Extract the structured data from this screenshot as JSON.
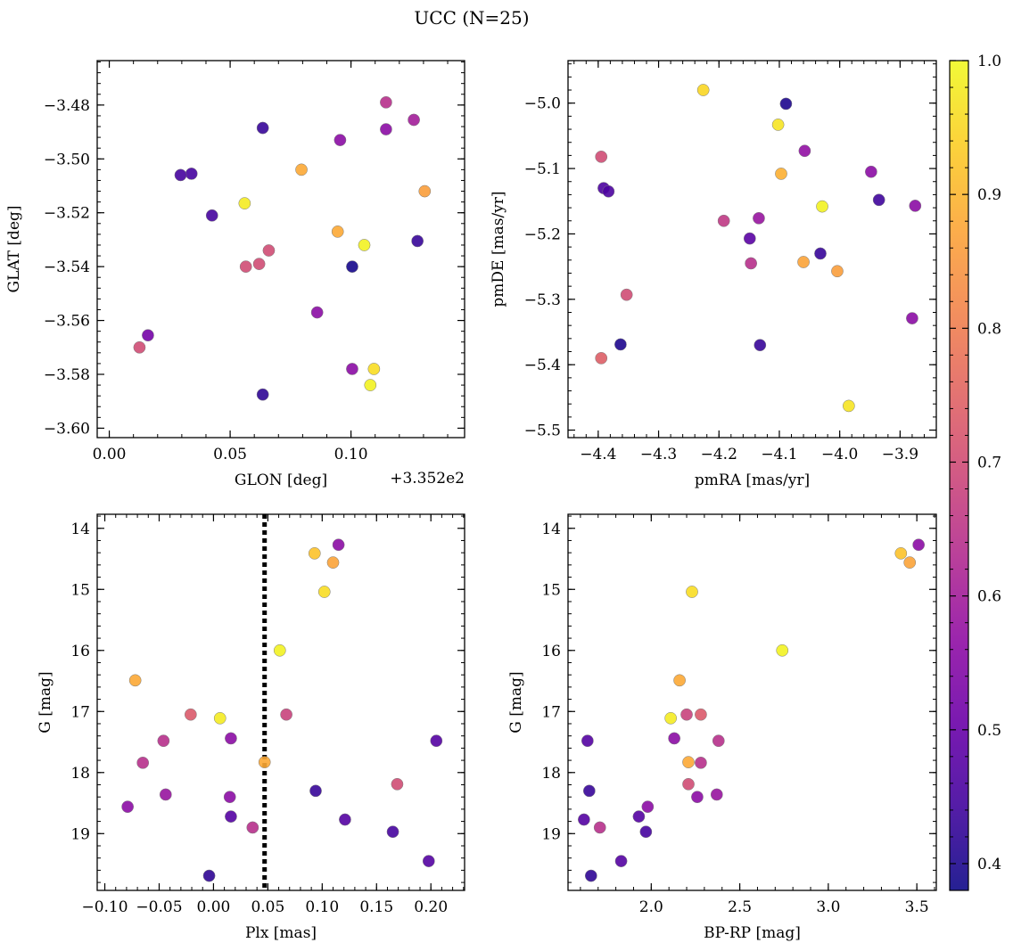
{
  "figure": {
    "title": "UCC (N=25)",
    "colorbar": {
      "colormap": "plasma",
      "vmin": 0.38,
      "vmax": 1.0,
      "ticks": [
        "0.4",
        "0.5",
        "0.6",
        "0.7",
        "0.8",
        "0.9",
        "1.0"
      ],
      "tick_values": [
        0.4,
        0.5,
        0.6,
        0.7,
        0.8,
        0.9,
        1.0
      ]
    }
  },
  "chart_data": [
    {
      "type": "scatter",
      "panel": "top-left",
      "xlabel": "GLON [deg]",
      "ylabel": "GLAT [deg]",
      "offset_text": "+3.352e2",
      "xlim": [
        -0.005,
        0.147
      ],
      "ylim": [
        -3.6035,
        -3.4635
      ],
      "y_inverted": false,
      "xticks": [
        0.0,
        0.05,
        0.1
      ],
      "xtick_labels": [
        "0.00",
        "0.05",
        "0.10"
      ],
      "yticks": [
        -3.6,
        -3.58,
        -3.56,
        -3.54,
        -3.52,
        -3.5,
        -3.48
      ],
      "ytick_labels": [
        "−3.60",
        "−3.58",
        "−3.56",
        "−3.54",
        "−3.52",
        "−3.50",
        "−3.48"
      ],
      "points": [
        {
          "x": 0.034,
          "y": -3.5055,
          "c": 0.45
        },
        {
          "x": 0.0295,
          "y": -3.506,
          "c": 0.45
        },
        {
          "x": 0.0425,
          "y": -3.521,
          "c": 0.45
        },
        {
          "x": 0.0635,
          "y": -3.4885,
          "c": 0.43
        },
        {
          "x": 0.056,
          "y": -3.5165,
          "c": 0.98
        },
        {
          "x": 0.0795,
          "y": -3.504,
          "c": 0.88
        },
        {
          "x": 0.0955,
          "y": -3.493,
          "c": 0.56
        },
        {
          "x": 0.1145,
          "y": -3.479,
          "c": 0.64
        },
        {
          "x": 0.1145,
          "y": -3.489,
          "c": 0.56
        },
        {
          "x": 0.126,
          "y": -3.4855,
          "c": 0.6
        },
        {
          "x": 0.1305,
          "y": -3.512,
          "c": 0.86
        },
        {
          "x": 0.0945,
          "y": -3.527,
          "c": 0.88
        },
        {
          "x": 0.1055,
          "y": -3.532,
          "c": 0.99
        },
        {
          "x": 0.1275,
          "y": -3.5305,
          "c": 0.43
        },
        {
          "x": 0.1005,
          "y": -3.54,
          "c": 0.39
        },
        {
          "x": 0.066,
          "y": -3.534,
          "c": 0.7
        },
        {
          "x": 0.062,
          "y": -3.539,
          "c": 0.7
        },
        {
          "x": 0.0565,
          "y": -3.54,
          "c": 0.7
        },
        {
          "x": 0.086,
          "y": -3.557,
          "c": 0.56
        },
        {
          "x": 0.016,
          "y": -3.5655,
          "c": 0.52
        },
        {
          "x": 0.0125,
          "y": -3.57,
          "c": 0.7
        },
        {
          "x": 0.1005,
          "y": -3.578,
          "c": 0.56
        },
        {
          "x": 0.1095,
          "y": -3.578,
          "c": 0.96
        },
        {
          "x": 0.108,
          "y": -3.584,
          "c": 0.99
        },
        {
          "x": 0.0635,
          "y": -3.5875,
          "c": 0.42
        }
      ]
    },
    {
      "type": "scatter",
      "panel": "top-right",
      "xlabel": "pmRA [mas/yr]",
      "ylabel": "pmDE [mas/yr]",
      "xlim": [
        -4.45,
        -3.84
      ],
      "ylim": [
        -5.5115,
        -4.935
      ],
      "y_inverted": false,
      "xticks": [
        -4.4,
        -4.3,
        -4.2,
        -4.1,
        -4.0,
        -3.9
      ],
      "xtick_labels": [
        "−4.4",
        "−4.3",
        "−4.2",
        "−4.1",
        "−4.0",
        "−3.9"
      ],
      "yticks": [
        -5.5,
        -5.4,
        -5.3,
        -5.2,
        -5.1,
        -5.0
      ],
      "ytick_labels": [
        "−5.5",
        "−5.4",
        "−5.3",
        "−5.2",
        "−5.1",
        "−5.0"
      ],
      "points": [
        {
          "x": -4.226,
          "y": -4.98,
          "c": 0.95
        },
        {
          "x": -4.089,
          "y": -5.001,
          "c": 0.4
        },
        {
          "x": -4.102,
          "y": -5.033,
          "c": 0.97
        },
        {
          "x": -4.395,
          "y": -5.082,
          "c": 0.7
        },
        {
          "x": -4.058,
          "y": -5.073,
          "c": 0.57
        },
        {
          "x": -4.097,
          "y": -5.108,
          "c": 0.89
        },
        {
          "x": -3.948,
          "y": -5.105,
          "c": 0.56
        },
        {
          "x": -4.391,
          "y": -5.13,
          "c": 0.46
        },
        {
          "x": -4.383,
          "y": -5.135,
          "c": 0.46
        },
        {
          "x": -3.935,
          "y": -5.148,
          "c": 0.44
        },
        {
          "x": -4.029,
          "y": -5.158,
          "c": 0.99
        },
        {
          "x": -3.875,
          "y": -5.157,
          "c": 0.56
        },
        {
          "x": -4.192,
          "y": -5.18,
          "c": 0.66
        },
        {
          "x": -4.134,
          "y": -5.176,
          "c": 0.58
        },
        {
          "x": -4.149,
          "y": -5.207,
          "c": 0.48
        },
        {
          "x": -4.032,
          "y": -5.23,
          "c": 0.43
        },
        {
          "x": -4.147,
          "y": -5.245,
          "c": 0.64
        },
        {
          "x": -4.06,
          "y": -5.243,
          "c": 0.87
        },
        {
          "x": -4.004,
          "y": -5.257,
          "c": 0.86
        },
        {
          "x": -4.353,
          "y": -5.293,
          "c": 0.7
        },
        {
          "x": -3.88,
          "y": -5.329,
          "c": 0.56
        },
        {
          "x": -4.363,
          "y": -5.369,
          "c": 0.4
        },
        {
          "x": -4.132,
          "y": -5.37,
          "c": 0.43
        },
        {
          "x": -4.395,
          "y": -5.39,
          "c": 0.74
        },
        {
          "x": -3.985,
          "y": -5.463,
          "c": 0.97
        }
      ]
    },
    {
      "type": "scatter",
      "panel": "bottom-left",
      "xlabel": "Plx [mas]",
      "ylabel": "G [mag]",
      "xlim": [
        -0.107,
        0.231
      ],
      "ylim": [
        19.93,
        13.77
      ],
      "y_inverted": true,
      "xticks": [
        -0.1,
        -0.05,
        0.0,
        0.05,
        0.1,
        0.15,
        0.2
      ],
      "xtick_labels": [
        "−0.10",
        "−0.05",
        "0.00",
        "0.05",
        "0.10",
        "0.15",
        "0.20"
      ],
      "yticks": [
        14,
        15,
        16,
        17,
        18,
        19
      ],
      "ytick_labels": [
        "14",
        "15",
        "16",
        "17",
        "18",
        "19"
      ],
      "vline": {
        "x": 0.047,
        "style": "dotted",
        "color": "#000000"
      },
      "points": [
        {
          "x": 0.093,
          "y": 14.41,
          "c": 0.92
        },
        {
          "x": 0.115,
          "y": 14.27,
          "c": 0.56
        },
        {
          "x": 0.11,
          "y": 14.56,
          "c": 0.87
        },
        {
          "x": 0.102,
          "y": 15.04,
          "c": 0.96
        },
        {
          "x": 0.061,
          "y": 16.0,
          "c": 0.99
        },
        {
          "x": -0.072,
          "y": 16.49,
          "c": 0.88
        },
        {
          "x": -0.021,
          "y": 17.05,
          "c": 0.73
        },
        {
          "x": 0.006,
          "y": 17.11,
          "c": 0.98
        },
        {
          "x": 0.067,
          "y": 17.05,
          "c": 0.68
        },
        {
          "x": 0.016,
          "y": 17.44,
          "c": 0.56
        },
        {
          "x": -0.046,
          "y": 17.48,
          "c": 0.64
        },
        {
          "x": 0.205,
          "y": 17.48,
          "c": 0.47
        },
        {
          "x": -0.065,
          "y": 17.84,
          "c": 0.64
        },
        {
          "x": 0.047,
          "y": 17.83,
          "c": 0.88
        },
        {
          "x": 0.169,
          "y": 18.19,
          "c": 0.7
        },
        {
          "x": 0.094,
          "y": 18.3,
          "c": 0.43
        },
        {
          "x": -0.044,
          "y": 18.36,
          "c": 0.58
        },
        {
          "x": 0.015,
          "y": 18.4,
          "c": 0.56
        },
        {
          "x": -0.079,
          "y": 18.56,
          "c": 0.56
        },
        {
          "x": 0.016,
          "y": 18.72,
          "c": 0.47
        },
        {
          "x": 0.121,
          "y": 18.77,
          "c": 0.47
        },
        {
          "x": 0.036,
          "y": 18.9,
          "c": 0.64
        },
        {
          "x": 0.165,
          "y": 18.97,
          "c": 0.45
        },
        {
          "x": 0.198,
          "y": 19.45,
          "c": 0.47
        },
        {
          "x": -0.004,
          "y": 19.69,
          "c": 0.42
        }
      ]
    },
    {
      "type": "scatter",
      "panel": "bottom-right",
      "xlabel": "BP-RP [mag]",
      "ylabel": "G [mag]",
      "xlim": [
        1.53,
        3.61
      ],
      "ylim": [
        19.93,
        13.77
      ],
      "y_inverted": true,
      "xticks": [
        2.0,
        2.5,
        3.0,
        3.5
      ],
      "xtick_labels": [
        "2.0",
        "2.5",
        "3.0",
        "3.5"
      ],
      "yticks": [
        14,
        15,
        16,
        17,
        18,
        19
      ],
      "ytick_labels": [
        "14",
        "15",
        "16",
        "17",
        "18",
        "19"
      ],
      "points": [
        {
          "x": 3.51,
          "y": 14.27,
          "c": 0.56
        },
        {
          "x": 3.41,
          "y": 14.41,
          "c": 0.92
        },
        {
          "x": 3.46,
          "y": 14.56,
          "c": 0.87
        },
        {
          "x": 2.23,
          "y": 15.04,
          "c": 0.96
        },
        {
          "x": 2.74,
          "y": 16.0,
          "c": 0.99
        },
        {
          "x": 2.16,
          "y": 16.49,
          "c": 0.88
        },
        {
          "x": 2.2,
          "y": 17.05,
          "c": 0.68
        },
        {
          "x": 2.28,
          "y": 17.05,
          "c": 0.73
        },
        {
          "x": 2.11,
          "y": 17.11,
          "c": 0.98
        },
        {
          "x": 2.13,
          "y": 17.44,
          "c": 0.56
        },
        {
          "x": 1.64,
          "y": 17.48,
          "c": 0.47
        },
        {
          "x": 2.38,
          "y": 17.48,
          "c": 0.64
        },
        {
          "x": 2.21,
          "y": 17.83,
          "c": 0.88
        },
        {
          "x": 2.28,
          "y": 17.84,
          "c": 0.64
        },
        {
          "x": 2.21,
          "y": 18.19,
          "c": 0.7
        },
        {
          "x": 1.65,
          "y": 18.3,
          "c": 0.43
        },
        {
          "x": 2.37,
          "y": 18.36,
          "c": 0.58
        },
        {
          "x": 2.26,
          "y": 18.4,
          "c": 0.56
        },
        {
          "x": 1.98,
          "y": 18.56,
          "c": 0.56
        },
        {
          "x": 1.93,
          "y": 18.72,
          "c": 0.47
        },
        {
          "x": 1.62,
          "y": 18.77,
          "c": 0.47
        },
        {
          "x": 1.71,
          "y": 18.9,
          "c": 0.64
        },
        {
          "x": 1.97,
          "y": 18.97,
          "c": 0.45
        },
        {
          "x": 1.83,
          "y": 19.45,
          "c": 0.47
        },
        {
          "x": 1.66,
          "y": 19.69,
          "c": 0.42
        }
      ]
    }
  ]
}
